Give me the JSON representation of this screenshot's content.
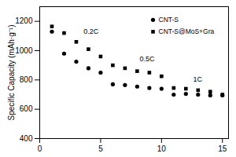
{
  "chart_data": {
    "type": "scatter",
    "y_label": "Specific Capacity (mAh·g⁻¹)",
    "x": [
      1,
      2,
      3,
      4,
      5,
      6,
      7,
      8,
      9,
      10,
      11,
      12,
      13,
      14,
      15
    ],
    "series": [
      {
        "name": "CNT-S",
        "color": "#000000",
        "marker": "circle",
        "values": [
          1130,
          980,
          925,
          880,
          850,
          770,
          765,
          755,
          745,
          740,
          700,
          705,
          700,
          695,
          695
        ]
      },
      {
        "name": "CNT-S@MoS+Gra",
        "color": "#000000",
        "marker": "square",
        "values": [
          1165,
          1120,
          1060,
          1010,
          960,
          900,
          880,
          860,
          850,
          825,
          745,
          740,
          730,
          720,
          700
        ]
      }
    ],
    "annotations": [
      {
        "text": "0.2C",
        "x": 3.6,
        "y": 1130
      },
      {
        "text": "0.5C",
        "x": 8.2,
        "y": 945
      },
      {
        "text": "1C",
        "x": 12.6,
        "y": 805
      }
    ],
    "xlim": [
      0,
      15.5
    ],
    "xticks": [
      0,
      5,
      10,
      15
    ],
    "ylim": [
      400,
      1300
    ],
    "yticks": [
      400,
      600,
      800,
      1000,
      1200
    ],
    "legend": "top-right",
    "grid": false
  }
}
